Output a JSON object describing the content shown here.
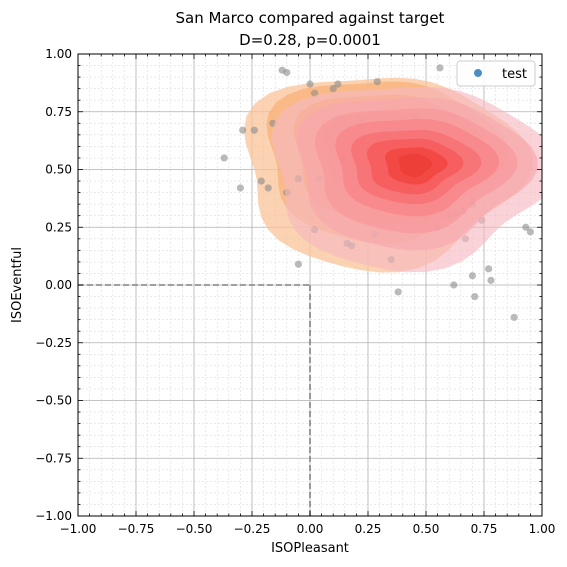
{
  "chart_data": {
    "type": "scatter",
    "title": "San Marco compared against target",
    "subtitle": "D=0.28, p=0.0001",
    "xlabel": "ISOPleasant",
    "ylabel": "ISOEventful",
    "xlim": [
      -1.0,
      1.0
    ],
    "ylim": [
      -1.0,
      1.0
    ],
    "xticks": [
      "−1.00",
      "−0.75",
      "−0.50",
      "−0.25",
      "0.00",
      "0.25",
      "0.50",
      "0.75",
      "1.00"
    ],
    "yticks": [
      "−1.00",
      "−0.75",
      "−0.50",
      "−0.25",
      "0.00",
      "0.25",
      "0.50",
      "0.75",
      "1.00"
    ],
    "grid": true,
    "minor_grid": true,
    "reference_lines": [
      {
        "axis": "x",
        "value": 0
      },
      {
        "axis": "y",
        "value": 0
      }
    ],
    "legend": {
      "position": "top-right",
      "entries": [
        {
          "label": "test",
          "marker": "circle",
          "color": "#4c8dc4"
        }
      ]
    },
    "colors": {
      "test_points": "#8c8c8c",
      "test_density": [
        "#f9c49a",
        "#f9b27a",
        "#f89e5a",
        "#f58a3c",
        "#ef7a2a"
      ],
      "target_density": [
        "#f6b8c0",
        "#f7a7ad",
        "#f8949a",
        "#f87e82",
        "#f7686a",
        "#f55150",
        "#f13d36",
        "#e8382e"
      ]
    },
    "density_levels": {
      "test": [
        {
          "center": [
            0.3,
            0.5
          ],
          "rx": 0.6,
          "ry": 0.42
        },
        {
          "center": [
            0.3,
            0.55
          ],
          "rx": 0.5,
          "ry": 0.35
        },
        {
          "center": [
            0.32,
            0.56
          ],
          "rx": 0.4,
          "ry": 0.28
        },
        {
          "center": [
            0.35,
            0.56
          ],
          "rx": 0.3,
          "ry": 0.2
        },
        {
          "center": [
            0.38,
            0.55
          ],
          "rx": 0.2,
          "ry": 0.13
        }
      ],
      "target": [
        {
          "center": [
            0.42,
            0.48
          ],
          "rx": 0.6,
          "ry": 0.4
        },
        {
          "center": [
            0.43,
            0.5
          ],
          "rx": 0.5,
          "ry": 0.33
        },
        {
          "center": [
            0.43,
            0.51
          ],
          "rx": 0.42,
          "ry": 0.27
        },
        {
          "center": [
            0.44,
            0.52
          ],
          "rx": 0.34,
          "ry": 0.21
        },
        {
          "center": [
            0.44,
            0.52
          ],
          "rx": 0.27,
          "ry": 0.16
        },
        {
          "center": [
            0.44,
            0.52
          ],
          "rx": 0.2,
          "ry": 0.12
        },
        {
          "center": [
            0.45,
            0.52
          ],
          "rx": 0.13,
          "ry": 0.08
        },
        {
          "center": [
            0.45,
            0.52
          ],
          "rx": 0.07,
          "ry": 0.05
        }
      ]
    },
    "series": [
      {
        "name": "test",
        "points": [
          [
            -0.12,
            0.93
          ],
          [
            -0.1,
            0.92
          ],
          [
            0.56,
            0.94
          ],
          [
            0.0,
            0.87
          ],
          [
            0.02,
            0.83
          ],
          [
            0.12,
            0.87
          ],
          [
            0.1,
            0.85
          ],
          [
            0.29,
            0.88
          ],
          [
            0.46,
            0.73
          ],
          [
            0.4,
            0.72
          ],
          [
            0.22,
            0.72
          ],
          [
            -0.16,
            0.7
          ],
          [
            0.12,
            0.72
          ],
          [
            0.15,
            0.69
          ],
          [
            -0.29,
            0.67
          ],
          [
            -0.24,
            0.67
          ],
          [
            0.38,
            0.67
          ],
          [
            0.08,
            0.65
          ],
          [
            -0.37,
            0.55
          ],
          [
            0.14,
            0.55
          ],
          [
            0.3,
            0.55
          ],
          [
            0.36,
            0.55
          ],
          [
            0.42,
            0.55
          ],
          [
            0.48,
            0.55
          ],
          [
            0.46,
            0.48
          ],
          [
            0.27,
            0.49
          ],
          [
            0.53,
            0.5
          ],
          [
            0.62,
            0.55
          ],
          [
            0.23,
            0.46
          ],
          [
            0.04,
            0.46
          ],
          [
            -0.05,
            0.46
          ],
          [
            -0.21,
            0.45
          ],
          [
            -0.18,
            0.42
          ],
          [
            -0.3,
            0.42
          ],
          [
            -0.1,
            0.4
          ],
          [
            0.19,
            0.41
          ],
          [
            0.33,
            0.4
          ],
          [
            0.44,
            0.38
          ],
          [
            0.37,
            0.35
          ],
          [
            0.63,
            0.31
          ],
          [
            0.66,
            0.32
          ],
          [
            0.7,
            0.35
          ],
          [
            0.74,
            0.28
          ],
          [
            0.6,
            0.3
          ],
          [
            0.5,
            0.29
          ],
          [
            0.55,
            0.25
          ],
          [
            0.67,
            0.2
          ],
          [
            0.28,
            0.22
          ],
          [
            0.16,
            0.18
          ],
          [
            0.18,
            0.17
          ],
          [
            0.02,
            0.24
          ],
          [
            0.93,
            0.25
          ],
          [
            0.95,
            0.23
          ],
          [
            0.7,
            0.04
          ],
          [
            0.77,
            0.07
          ],
          [
            0.78,
            0.02
          ],
          [
            0.71,
            -0.05
          ],
          [
            0.35,
            0.11
          ],
          [
            -0.05,
            0.09
          ],
          [
            0.88,
            -0.14
          ],
          [
            0.38,
            -0.03
          ],
          [
            0.62,
            0.0
          ]
        ]
      }
    ]
  }
}
